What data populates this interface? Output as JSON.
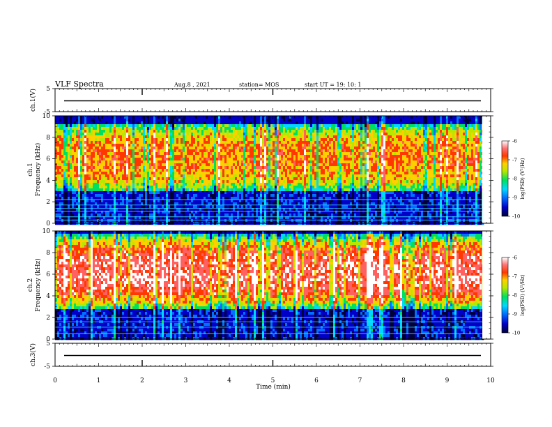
{
  "header": {
    "title": "VLF Spectra",
    "date": "Aug.8 , 2021",
    "station": "station= MOS",
    "start": "start UT = 19: 10: 1"
  },
  "colors": {
    "spectrum_ramp": [
      "#00003a",
      "#0000c8",
      "#0070ff",
      "#00d8ff",
      "#00e060",
      "#b8e800",
      "#ffd000",
      "#ff3800",
      "#ff6060",
      "#ffffff"
    ],
    "frame": "#000000"
  },
  "chart_data": [
    {
      "type": "line",
      "name": "ch1-waveform",
      "ylabel": "ch.1(V)",
      "ylim": [
        -5,
        5
      ],
      "y_ticks": [
        "5",
        "-5"
      ],
      "xlim": [
        0,
        10
      ],
      "baseline_value": 0
    },
    {
      "type": "heatmap",
      "name": "ch1-spectrogram",
      "ylabel": "ch.1 Frequency (kHz)",
      "ylim": [
        0,
        10
      ],
      "y_ticks": [
        "0",
        "2",
        "4",
        "6",
        "8",
        "10"
      ],
      "xlim": [
        0,
        10
      ],
      "emission_band_khz": [
        3.0,
        9.4
      ],
      "strong_low_lines_khz": [
        0.3,
        0.6,
        1.1,
        1.4,
        1.7,
        2.2
      ],
      "colorbar": {
        "label": "log(PSD) (V²/Hz)",
        "range": [
          -10,
          -6
        ],
        "ticks": [
          "-6",
          "-7",
          "-8",
          "-9",
          "-10"
        ]
      }
    },
    {
      "type": "heatmap",
      "name": "ch2-spectrogram",
      "ylabel": "ch.2 Frequency (kHz)",
      "ylim": [
        0,
        10
      ],
      "y_ticks": [
        "0",
        "2",
        "4",
        "6",
        "8",
        "10"
      ],
      "xlim": [
        0,
        10
      ],
      "emission_band_khz": [
        2.8,
        9.8
      ],
      "strong_low_lines_khz": [
        0.5,
        1.1,
        1.6,
        2.0
      ],
      "colorbar": {
        "label": "log(PSD) (V²/Hz)",
        "range": [
          -10,
          -6
        ],
        "ticks": [
          "-6",
          "-7",
          "-8",
          "-9",
          "-10"
        ]
      }
    },
    {
      "type": "line",
      "name": "ch3-waveform",
      "ylabel": "ch.3(V)",
      "ylim": [
        -5,
        5
      ],
      "y_ticks": [
        "5",
        "-5"
      ],
      "xlim": [
        0,
        10
      ],
      "baseline_value": 0
    }
  ],
  "x_axis": {
    "label": "Time (min)",
    "ticks": [
      "0",
      "1",
      "2",
      "3",
      "4",
      "5",
      "6",
      "7",
      "8",
      "9",
      "10"
    ]
  }
}
